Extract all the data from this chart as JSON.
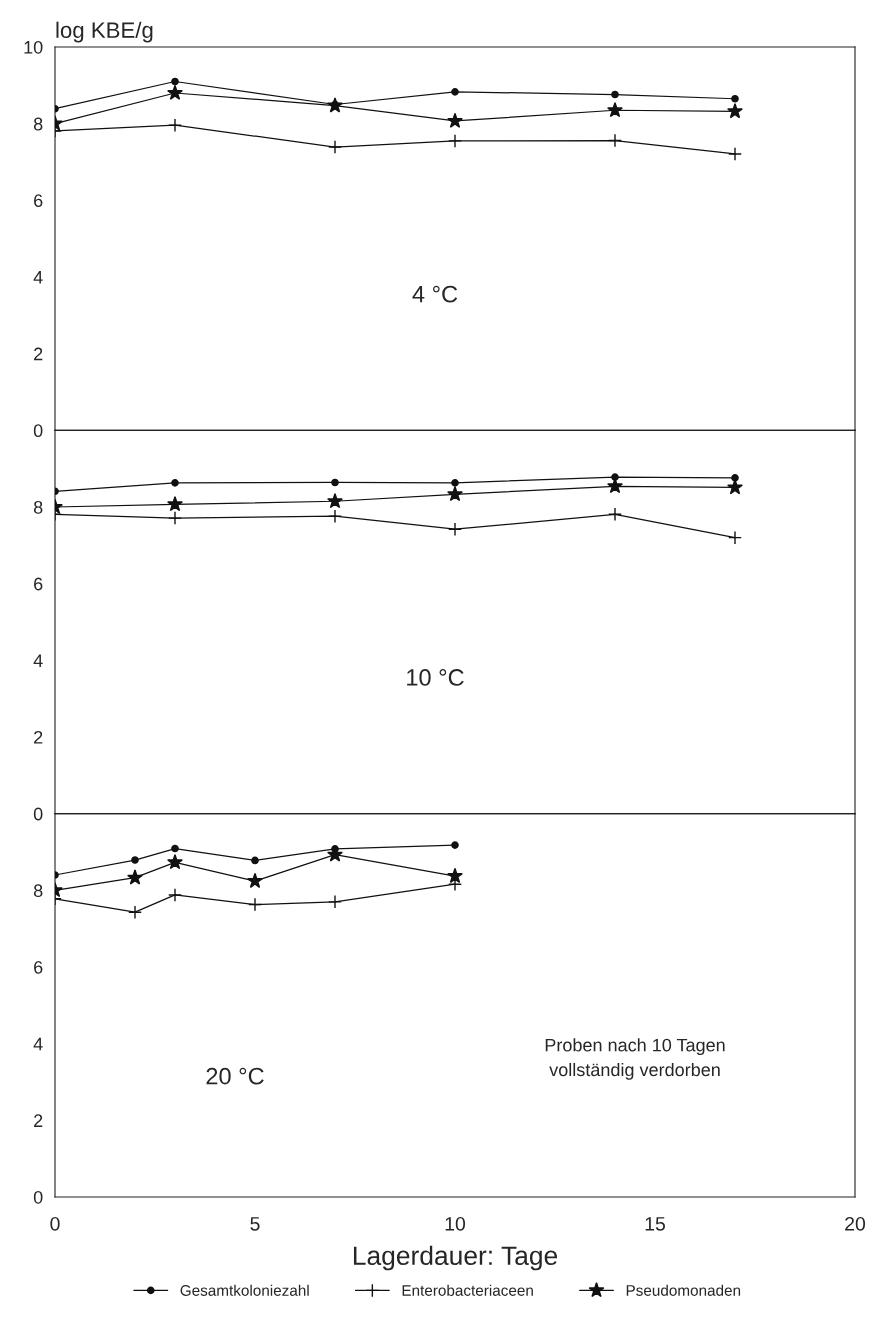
{
  "chart_data": [
    {
      "type": "line",
      "ylabel": "log KBE/g",
      "x": [
        0,
        3,
        7,
        10,
        14,
        17
      ],
      "xlim": [
        0,
        20
      ],
      "xticks": [
        0,
        5,
        10,
        15,
        20
      ],
      "ylim": [
        0,
        10
      ],
      "yticks": [
        0,
        2,
        4,
        6,
        8,
        10
      ],
      "tick_labels": "y",
      "legend": "bottom",
      "annotations": [
        "4 °C"
      ],
      "series": [
        {
          "name": "Gesamtkoloniezahl",
          "color": "#111111",
          "marker": "circle",
          "values": [
            8.39,
            9.1,
            8.5,
            8.83,
            8.76,
            8.65
          ]
        },
        {
          "name": "Enterobacteriaceen",
          "color": "#111111",
          "marker": "cross",
          "values": [
            7.81,
            7.96,
            7.39,
            7.55,
            7.56,
            7.21
          ]
        },
        {
          "name": "Pseudomonaden",
          "color": "#111111",
          "marker": "star",
          "values": [
            8.0,
            8.8,
            8.47,
            8.07,
            8.35,
            8.32
          ]
        }
      ]
    },
    {
      "type": "line",
      "x": [
        0,
        3,
        7,
        10,
        14,
        17
      ],
      "xlim": [
        0,
        20
      ],
      "xticks": [
        0,
        5,
        10,
        15,
        20
      ],
      "ylim": [
        0,
        10
      ],
      "yticks": [
        0,
        2,
        4,
        6,
        8
      ],
      "tick_labels": "y",
      "legend": "bottom",
      "annotations": [
        "10 °C"
      ],
      "series": [
        {
          "name": "Gesamtkoloniezahl",
          "color": "#111111",
          "marker": "circle",
          "values": [
            8.41,
            8.63,
            8.64,
            8.63,
            8.78,
            8.76
          ]
        },
        {
          "name": "Enterobacteriaceen",
          "color": "#111111",
          "marker": "cross",
          "values": [
            7.81,
            7.71,
            7.76,
            7.42,
            7.81,
            7.2
          ]
        },
        {
          "name": "Pseudomonaden",
          "color": "#111111",
          "marker": "star",
          "values": [
            8.0,
            8.07,
            8.15,
            8.33,
            8.54,
            8.51
          ]
        }
      ]
    },
    {
      "type": "line",
      "xlabel": "Lagerdauer: Tage",
      "x": [
        0,
        2,
        3,
        5,
        7,
        10
      ],
      "xlim": [
        0,
        20
      ],
      "xticks": [
        0,
        5,
        10,
        15,
        20
      ],
      "ylim": [
        0,
        10
      ],
      "yticks": [
        0,
        2,
        4,
        6,
        8
      ],
      "legend": "bottom",
      "annotations": [
        "20 °C",
        "Proben nach 10 Tagen\nvollständig verdorben"
      ],
      "series": [
        {
          "name": "Gesamtkoloniezahl",
          "color": "#111111",
          "marker": "circle",
          "values": [
            8.4,
            8.79,
            9.09,
            8.78,
            9.08,
            9.18
          ]
        },
        {
          "name": "Enterobacteriaceen",
          "color": "#111111",
          "marker": "cross",
          "values": [
            7.78,
            7.43,
            7.88,
            7.63,
            7.7,
            8.16
          ]
        },
        {
          "name": "Pseudomonaden",
          "color": "#111111",
          "marker": "star",
          "values": [
            8.0,
            8.33,
            8.73,
            8.24,
            8.93,
            8.37
          ]
        }
      ]
    }
  ]
}
